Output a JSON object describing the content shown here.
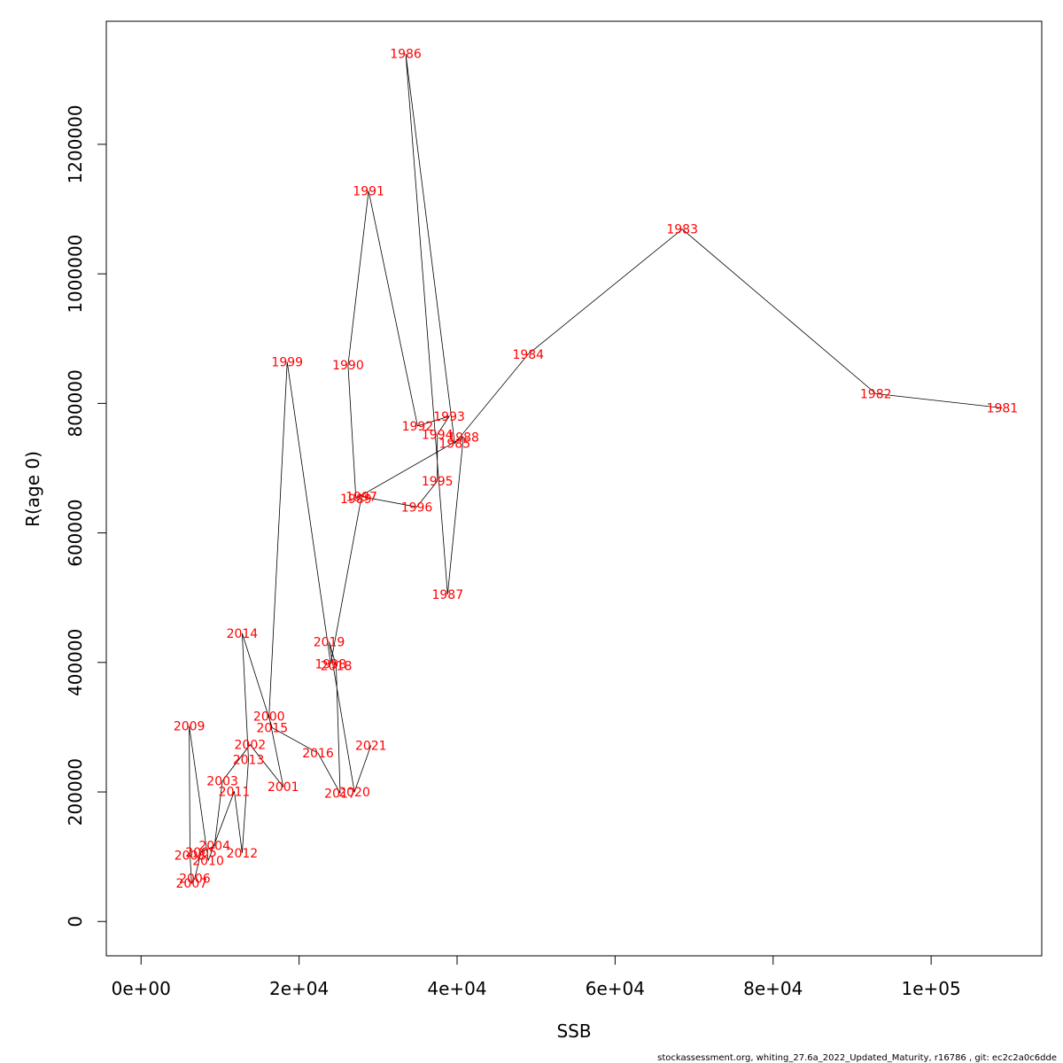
{
  "chart_data": {
    "type": "line",
    "title": "",
    "xlabel": "SSB",
    "ylabel": "R(age 0)",
    "xlim": [
      -4400,
      114000
    ],
    "ylim": [
      -53000,
      1390000
    ],
    "xticks": [
      0,
      20000,
      40000,
      60000,
      80000,
      100000
    ],
    "xtick_labels": [
      "0e+00",
      "2e+04",
      "4e+04",
      "6e+04",
      "8e+04",
      "1e+05"
    ],
    "yticks": [
      0,
      200000,
      400000,
      600000,
      800000,
      1000000,
      1200000
    ],
    "ytick_labels": [
      "0",
      "200000",
      "400000",
      "600000",
      "800000",
      "1000000",
      "1200000"
    ],
    "grid": false,
    "legend": "none",
    "line_color": "#000000",
    "label_color": "#ff0000",
    "points": [
      {
        "year": "1981",
        "ssb": 109000,
        "r": 793000
      },
      {
        "year": "1982",
        "ssb": 93000,
        "r": 815000
      },
      {
        "year": "1983",
        "ssb": 68500,
        "r": 1069000
      },
      {
        "year": "1984",
        "ssb": 49000,
        "r": 876000
      },
      {
        "year": "1985",
        "ssb": 39700,
        "r": 738000
      },
      {
        "year": "1986",
        "ssb": 33500,
        "r": 1340000
      },
      {
        "year": "1987",
        "ssb": 38800,
        "r": 505000
      },
      {
        "year": "1988",
        "ssb": 40800,
        "r": 748000
      },
      {
        "year": "1989",
        "ssb": 27200,
        "r": 653000
      },
      {
        "year": "1990",
        "ssb": 26200,
        "r": 859000
      },
      {
        "year": "1991",
        "ssb": 28800,
        "r": 1128000
      },
      {
        "year": "1992",
        "ssb": 35000,
        "r": 765000
      },
      {
        "year": "1993",
        "ssb": 39000,
        "r": 780000
      },
      {
        "year": "1994",
        "ssb": 37500,
        "r": 752000
      },
      {
        "year": "1995",
        "ssb": 37500,
        "r": 680000
      },
      {
        "year": "1996",
        "ssb": 34900,
        "r": 640000
      },
      {
        "year": "1997",
        "ssb": 27900,
        "r": 656000
      },
      {
        "year": "1998",
        "ssb": 24000,
        "r": 398000
      },
      {
        "year": "1999",
        "ssb": 18500,
        "r": 864000
      },
      {
        "year": "2000",
        "ssb": 16200,
        "r": 317000
      },
      {
        "year": "2001",
        "ssb": 18000,
        "r": 208000
      },
      {
        "year": "2002",
        "ssb": 13800,
        "r": 273000
      },
      {
        "year": "2003",
        "ssb": 10300,
        "r": 217000
      },
      {
        "year": "2004",
        "ssb": 9300,
        "r": 117000
      },
      {
        "year": "2005",
        "ssb": 7600,
        "r": 107000
      },
      {
        "year": "2006",
        "ssb": 6800,
        "r": 67000
      },
      {
        "year": "2007",
        "ssb": 6400,
        "r": 59000
      },
      {
        "year": "2008",
        "ssb": 6200,
        "r": 102000
      },
      {
        "year": "2009",
        "ssb": 6100,
        "r": 302000
      },
      {
        "year": "2010",
        "ssb": 8500,
        "r": 94000
      },
      {
        "year": "2011",
        "ssb": 11800,
        "r": 201000
      },
      {
        "year": "2012",
        "ssb": 12800,
        "r": 106000
      },
      {
        "year": "2013",
        "ssb": 13600,
        "r": 250000
      },
      {
        "year": "2014",
        "ssb": 12800,
        "r": 445000
      },
      {
        "year": "2015",
        "ssb": 16600,
        "r": 299000
      },
      {
        "year": "2016",
        "ssb": 22400,
        "r": 260000
      },
      {
        "year": "2017",
        "ssb": 25200,
        "r": 198000
      },
      {
        "year": "2018",
        "ssb": 24700,
        "r": 395000
      },
      {
        "year": "2019",
        "ssb": 23800,
        "r": 432000
      },
      {
        "year": "2020",
        "ssb": 27000,
        "r": 200000
      },
      {
        "year": "2021",
        "ssb": 29100,
        "r": 272000
      }
    ]
  },
  "footer_text": "stockassessment.org, whiting_27.6a_2022_Updated_Maturity, r16786 , git: ec2c2a0c6dde"
}
